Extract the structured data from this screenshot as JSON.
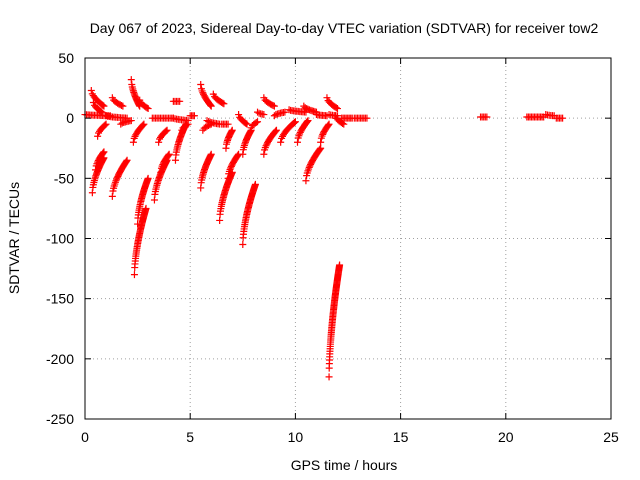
{
  "chart_data": {
    "type": "scatter",
    "title": "Day 067 of 2023, Sidereal Day-to-day VTEC variation (SDTVAR) for receiver tow2",
    "xlabel": "GPS time / hours",
    "ylabel": "SDTVAR / TECUs",
    "xlim": [
      0,
      25
    ],
    "ylim": [
      -250,
      50
    ],
    "xticks": [
      0,
      5,
      10,
      15,
      20,
      25
    ],
    "yticks": [
      50,
      0,
      -50,
      -100,
      -150,
      -200,
      -250
    ],
    "grid": true,
    "marker": "plus",
    "color": "#ff0000",
    "segments": [
      {
        "x0": 0.0,
        "x1": 1.2,
        "y0": 3,
        "y1": 2
      },
      {
        "x0": 0.3,
        "x1": 0.9,
        "y0": 23,
        "y1": 10
      },
      {
        "x0": 0.4,
        "x1": 0.8,
        "y0": 13,
        "y1": 5
      },
      {
        "x0": 0.35,
        "x1": 0.9,
        "y0": -62,
        "y1": -33
      },
      {
        "x0": 0.5,
        "x1": 0.9,
        "y0": -43,
        "y1": -28
      },
      {
        "x0": 0.6,
        "x1": 1.0,
        "y0": -15,
        "y1": -5
      },
      {
        "x0": 1.0,
        "x1": 2.0,
        "y0": 2,
        "y1": 0
      },
      {
        "x0": 1.3,
        "x1": 1.8,
        "y0": 17,
        "y1": 10
      },
      {
        "x0": 1.3,
        "x1": 2.0,
        "y0": -65,
        "y1": -35
      },
      {
        "x0": 1.7,
        "x1": 2.2,
        "y0": -5,
        "y1": -2
      },
      {
        "x0": 2.2,
        "x1": 2.6,
        "y0": 32,
        "y1": 10
      },
      {
        "x0": 2.35,
        "x1": 2.9,
        "y0": -130,
        "y1": -75
      },
      {
        "x0": 2.5,
        "x1": 3.0,
        "y0": -88,
        "y1": -50
      },
      {
        "x0": 2.3,
        "x1": 2.8,
        "y0": -20,
        "y1": -5
      },
      {
        "x0": 2.6,
        "x1": 3.0,
        "y0": 15,
        "y1": 8
      },
      {
        "x0": 3.2,
        "x1": 4.2,
        "y0": 0,
        "y1": 0
      },
      {
        "x0": 3.3,
        "x1": 3.9,
        "y0": -68,
        "y1": -35
      },
      {
        "x0": 3.6,
        "x1": 4.0,
        "y0": -45,
        "y1": -30
      },
      {
        "x0": 3.5,
        "x1": 3.9,
        "y0": -20,
        "y1": -10
      },
      {
        "x0": 4.2,
        "x1": 4.5,
        "y0": 14,
        "y1": 14
      },
      {
        "x0": 4.2,
        "x1": 4.9,
        "y0": 0,
        "y1": -2
      },
      {
        "x0": 4.3,
        "x1": 4.8,
        "y0": -35,
        "y1": -5
      },
      {
        "x0": 4.6,
        "x1": 4.9,
        "y0": -10,
        "y1": -5
      },
      {
        "x0": 5.0,
        "x1": 5.2,
        "y0": 2,
        "y1": 2
      },
      {
        "x0": 5.5,
        "x1": 6.0,
        "y0": 28,
        "y1": 10
      },
      {
        "x0": 5.5,
        "x1": 6.0,
        "y0": -58,
        "y1": -30
      },
      {
        "x0": 5.6,
        "x1": 6.0,
        "y0": -10,
        "y1": -5
      },
      {
        "x0": 5.8,
        "x1": 6.4,
        "y0": -2,
        "y1": -5
      },
      {
        "x0": 6.1,
        "x1": 6.6,
        "y0": 20,
        "y1": 12
      },
      {
        "x0": 6.4,
        "x1": 7.0,
        "y0": -85,
        "y1": -45
      },
      {
        "x0": 6.7,
        "x1": 7.0,
        "y0": -25,
        "y1": -10
      },
      {
        "x0": 6.8,
        "x1": 7.3,
        "y0": -50,
        "y1": -30
      },
      {
        "x0": 6.5,
        "x1": 6.8,
        "y0": -5,
        "y1": -5
      },
      {
        "x0": 7.3,
        "x1": 7.7,
        "y0": 3,
        "y1": -5
      },
      {
        "x0": 7.5,
        "x1": 8.1,
        "y0": -105,
        "y1": -55
      },
      {
        "x0": 7.5,
        "x1": 7.9,
        "y0": -30,
        "y1": -10
      },
      {
        "x0": 7.9,
        "x1": 8.2,
        "y0": -8,
        "y1": -3
      },
      {
        "x0": 8.2,
        "x1": 8.5,
        "y0": 5,
        "y1": 3
      },
      {
        "x0": 8.5,
        "x1": 9.1,
        "y0": -30,
        "y1": -10
      },
      {
        "x0": 8.5,
        "x1": 9.0,
        "y0": 17,
        "y1": 10
      },
      {
        "x0": 9.0,
        "x1": 9.5,
        "y0": 2,
        "y1": 5
      },
      {
        "x0": 9.3,
        "x1": 10.0,
        "y0": -20,
        "y1": -3
      },
      {
        "x0": 9.7,
        "x1": 10.5,
        "y0": 7,
        "y1": 5
      },
      {
        "x0": 10.1,
        "x1": 10.6,
        "y0": -20,
        "y1": -2
      },
      {
        "x0": 10.4,
        "x1": 11.0,
        "y0": 10,
        "y1": 5
      },
      {
        "x0": 10.5,
        "x1": 11.2,
        "y0": -52,
        "y1": -25
      },
      {
        "x0": 11.0,
        "x1": 11.5,
        "y0": 3,
        "y1": 2
      },
      {
        "x0": 11.2,
        "x1": 11.6,
        "y0": -20,
        "y1": -5
      },
      {
        "x0": 11.5,
        "x1": 12.0,
        "y0": 17,
        "y1": 8
      },
      {
        "x0": 11.6,
        "x1": 12.0,
        "y0": 3,
        "y1": 2
      },
      {
        "x0": 11.9,
        "x1": 12.3,
        "y0": 2,
        "y1": -5
      },
      {
        "x0": 11.6,
        "x1": 12.1,
        "y0": -215,
        "y1": -122
      },
      {
        "x0": 12.2,
        "x1": 12.7,
        "y0": 0,
        "y1": 0
      },
      {
        "x0": 12.8,
        "x1": 13.4,
        "y0": 0,
        "y1": 0
      },
      {
        "x0": 18.8,
        "x1": 19.1,
        "y0": 1,
        "y1": 1
      },
      {
        "x0": 21.0,
        "x1": 21.8,
        "y0": 1,
        "y1": 1
      },
      {
        "x0": 21.9,
        "x1": 22.3,
        "y0": 3,
        "y1": 2
      },
      {
        "x0": 22.4,
        "x1": 22.7,
        "y0": 0,
        "y1": 0
      }
    ]
  }
}
